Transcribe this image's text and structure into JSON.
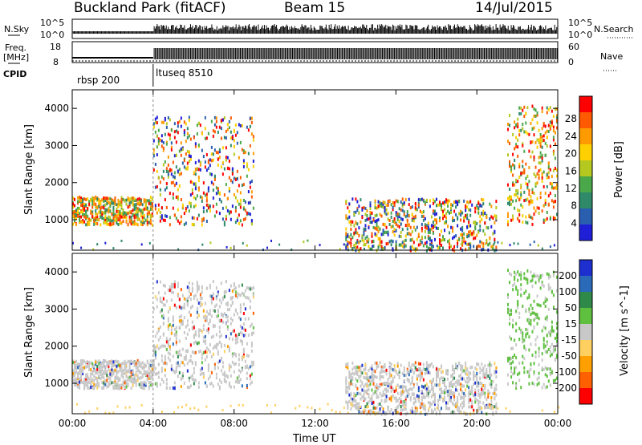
{
  "header": {
    "title": "Buckland Park (fitACF)",
    "beam": "Beam 15",
    "date": "14/Jul/2015"
  },
  "strip": {
    "nsky_label": "N.Sky",
    "nsearch_label": "N.Search",
    "freq_label_line1": "Freq.",
    "freq_label_line2": "[MHz]",
    "nave_label": "Nave",
    "cpid_label": "CPID",
    "nsky_ticks": [
      "10^5",
      "10^0"
    ],
    "freq_ticks": [
      "18",
      "8"
    ],
    "nave_ticks": [
      "60",
      "0"
    ],
    "cpid_segments": [
      {
        "label": "rbsp 200",
        "start_hour": 0,
        "end_hour": 4
      },
      {
        "label": "ltuseq 8510",
        "start_hour": 4,
        "end_hour": 24
      }
    ]
  },
  "colors": {
    "power": [
      "#1f1fd8",
      "#2a5fb0",
      "#2f8a6a",
      "#4aa84a",
      "#b5c820",
      "#ffd000",
      "#ff9a00",
      "#ff5a00",
      "#ff0000"
    ],
    "velocity": [
      "#1e2fd0",
      "#2a6ab8",
      "#2f8a4a",
      "#5fc040",
      "#c8c8c8",
      "#ffd060",
      "#ffa000",
      "#ff6000",
      "#ff0000"
    ]
  },
  "chart_data": [
    {
      "type": "heatmap",
      "panel": "power",
      "ylabel": "Slant Range [km]",
      "xlabel": "",
      "colorbar_label": "Power [dB]",
      "colorbar_ticks": [
        "4",
        "8",
        "12",
        "16",
        "20",
        "24",
        "28"
      ],
      "xlim": [
        0,
        24
      ],
      "ylim": [
        180,
        4500
      ],
      "ytick_labels": [
        "1000",
        "2000",
        "3000",
        "4000"
      ],
      "regions": [
        {
          "t0": 0.0,
          "t1": 4.0,
          "r0": 900,
          "r1": 1650,
          "level": "high"
        },
        {
          "t0": 4.0,
          "t1": 9.0,
          "r0": 900,
          "r1": 3800,
          "level": "mixed"
        },
        {
          "t0": 13.5,
          "t1": 21.0,
          "r0": 200,
          "r1": 1600,
          "level": "mixed"
        },
        {
          "t0": 21.5,
          "t1": 24.0,
          "r0": 900,
          "r1": 4100,
          "level": "high"
        }
      ]
    },
    {
      "type": "heatmap",
      "panel": "velocity",
      "ylabel": "Slant Range [km]",
      "xlabel": "Time UT",
      "colorbar_label": "Velocity [m s^-1]",
      "colorbar_ticks": [
        "200",
        "100",
        "50",
        "15",
        "-15",
        "-50",
        "-100",
        "-200"
      ],
      "xlim": [
        0,
        24
      ],
      "ylim": [
        180,
        4500
      ],
      "xtick_labels": [
        "00:00",
        "04:00",
        "08:00",
        "12:00",
        "16:00",
        "20:00",
        "00:00"
      ],
      "ytick_labels": [
        "1000",
        "2000",
        "3000",
        "4000"
      ],
      "regions": [
        {
          "t0": 0.0,
          "t1": 4.0,
          "r0": 900,
          "r1": 1650,
          "level": "near-zero"
        },
        {
          "t0": 4.0,
          "t1": 9.0,
          "r0": 900,
          "r1": 3800,
          "level": "near-zero"
        },
        {
          "t0": 13.5,
          "t1": 21.0,
          "r0": 200,
          "r1": 1600,
          "level": "near-zero"
        },
        {
          "t0": 21.5,
          "t1": 24.0,
          "r0": 900,
          "r1": 4100,
          "level": "positive"
        }
      ]
    }
  ]
}
